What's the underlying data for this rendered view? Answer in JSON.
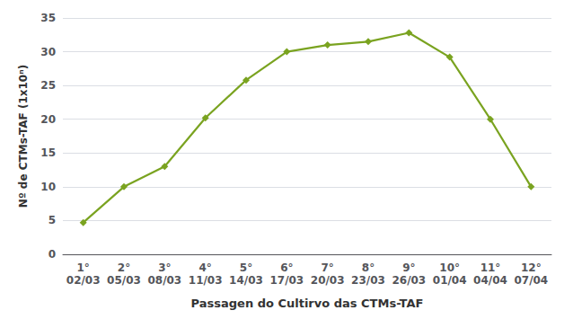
{
  "chart_data": {
    "type": "line",
    "categories": [
      "1°\n02/03",
      "2°\n05/03",
      "3°\n08/03",
      "4°\n11/03",
      "5°\n14/03",
      "6°\n17/03",
      "7°\n20/03",
      "8°\n23/03",
      "9°\n26/03",
      "10°\n01/04",
      "11°\n04/04",
      "12°\n07/04"
    ],
    "values": [
      4.7,
      10,
      13,
      20.2,
      25.8,
      30,
      31,
      31.5,
      32.8,
      29.2,
      20,
      10
    ],
    "xlabel": "Passagen do Cultirvo das CTMs-TAF",
    "ylabel": "Nº de CTMs-TAF (1x10ⁿ)",
    "ylim": [
      0,
      35
    ],
    "yticks": [
      0,
      5,
      10,
      15,
      20,
      25,
      30,
      35
    ],
    "color": "#7aa320",
    "marker": "diamond",
    "grid": true
  }
}
